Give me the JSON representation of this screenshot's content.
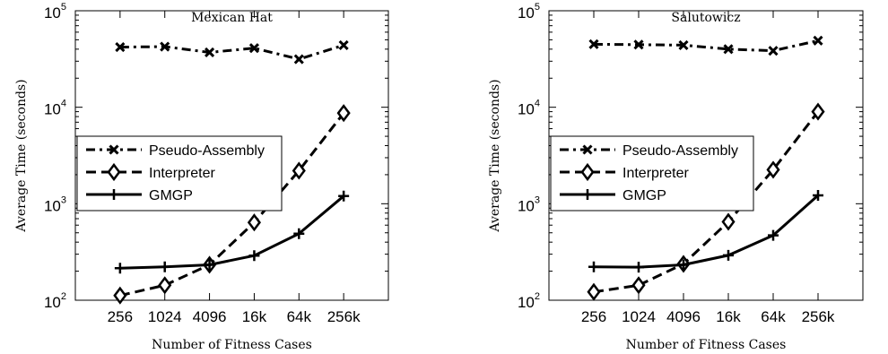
{
  "chart_data": [
    {
      "type": "line",
      "title": "Mexican Hat",
      "xlabel": "Number of Fitness Cases",
      "ylabel": "Average Time (seconds)",
      "categories": [
        "256",
        "1024",
        "4096",
        "16k",
        "64k",
        "256k"
      ],
      "yscale": "log",
      "ylim": [
        100,
        100000
      ],
      "yticks": [
        {
          "value": 100,
          "base": "10",
          "exp": "2"
        },
        {
          "value": 1000,
          "base": "10",
          "exp": "3"
        },
        {
          "value": 10000,
          "base": "10",
          "exp": "4"
        },
        {
          "value": 100000,
          "base": "10",
          "exp": "5"
        }
      ],
      "grid": false,
      "legend": "center-left",
      "series": [
        {
          "name": "Pseudo-Assembly",
          "style": "dash-dot",
          "marker": "x",
          "values": [
            42000,
            42500,
            37000,
            41000,
            31500,
            44000
          ]
        },
        {
          "name": "Interpreter",
          "style": "dashed",
          "marker": "diamond",
          "values": [
            112,
            143,
            233,
            640,
            2200,
            8700
          ]
        },
        {
          "name": "GMGP",
          "style": "solid",
          "marker": "plus",
          "values": [
            215,
            222,
            233,
            290,
            490,
            1200
          ]
        }
      ]
    },
    {
      "type": "line",
      "title": "Salutowicz",
      "xlabel": "Number of Fitness Cases",
      "ylabel": "Average Time (seconds)",
      "categories": [
        "256",
        "1024",
        "4096",
        "16k",
        "64k",
        "256k"
      ],
      "yscale": "log",
      "ylim": [
        100,
        100000
      ],
      "yticks": [
        {
          "value": 100,
          "base": "10",
          "exp": "2"
        },
        {
          "value": 1000,
          "base": "10",
          "exp": "3"
        },
        {
          "value": 10000,
          "base": "10",
          "exp": "4"
        },
        {
          "value": 100000,
          "base": "10",
          "exp": "5"
        }
      ],
      "grid": false,
      "legend": "center-left",
      "series": [
        {
          "name": "Pseudo-Assembly",
          "style": "dash-dot",
          "marker": "x",
          "values": [
            45000,
            44500,
            44000,
            40000,
            38500,
            49000
          ]
        },
        {
          "name": "Interpreter",
          "style": "dashed",
          "marker": "diamond",
          "values": [
            122,
            143,
            238,
            650,
            2250,
            9000
          ]
        },
        {
          "name": "GMGP",
          "style": "solid",
          "marker": "plus",
          "values": [
            222,
            220,
            233,
            292,
            470,
            1220
          ]
        }
      ]
    }
  ]
}
